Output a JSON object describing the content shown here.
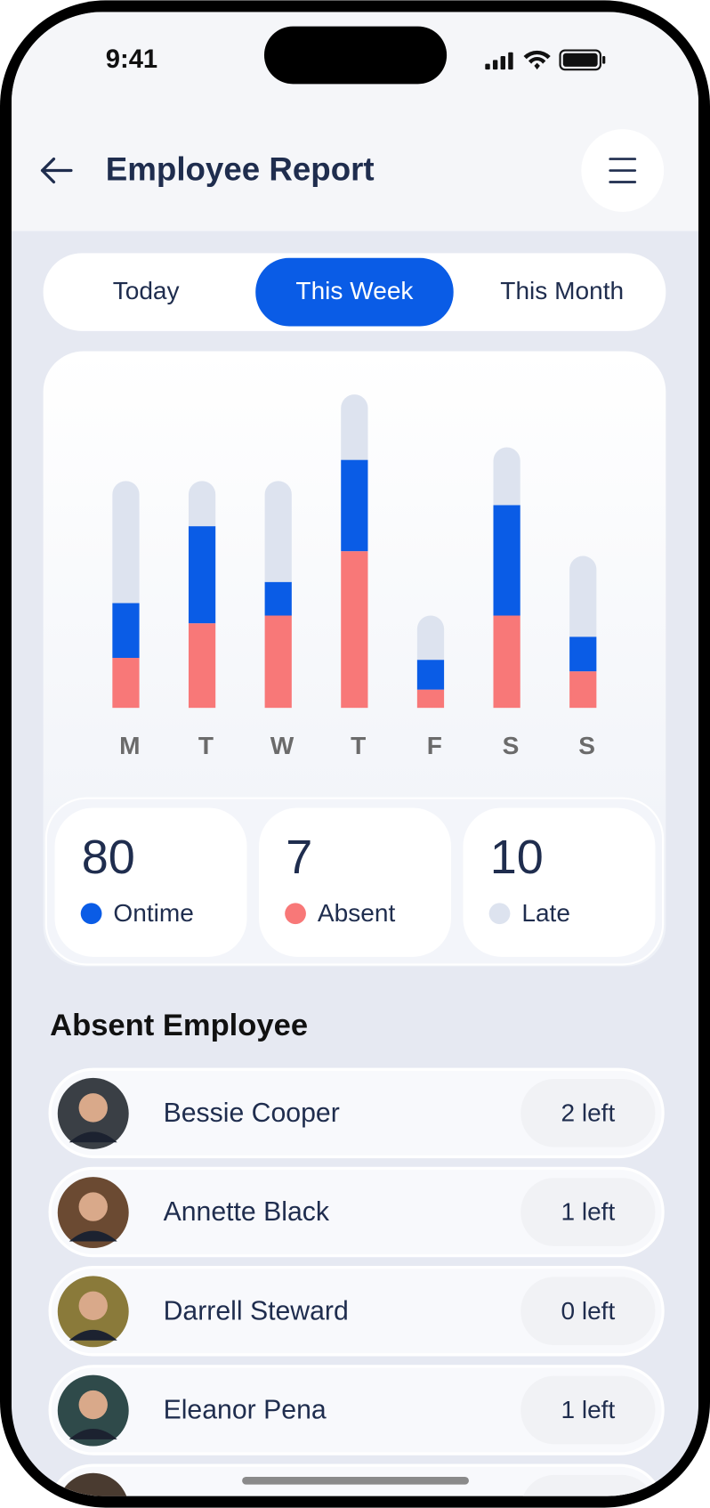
{
  "status_bar": {
    "time": "9:41"
  },
  "header": {
    "title": "Employee Report"
  },
  "tabs": {
    "items": [
      "Today",
      "This Week",
      "This Month"
    ],
    "active": 1
  },
  "chart_data": {
    "type": "bar",
    "stacked": true,
    "categories": [
      "M",
      "T",
      "W",
      "T",
      "F",
      "S",
      "S"
    ],
    "series": [
      {
        "color": "#f87878",
        "values": [
          52,
          88,
          96,
          163,
          19,
          96,
          38
        ]
      },
      {
        "color": "#0a5ce6",
        "values": [
          57,
          101,
          35,
          95,
          31,
          115,
          36
        ]
      },
      {
        "color": "#dde3ef",
        "values": [
          127,
          47,
          105,
          68,
          46,
          60,
          84
        ]
      }
    ],
    "ylim": [
      0,
      330
    ]
  },
  "summary": [
    {
      "value": 80,
      "label": "Ontime",
      "color": "#0a5ce6"
    },
    {
      "value": 7,
      "label": "Absent",
      "color": "#f87878"
    },
    {
      "value": 10,
      "label": "Late",
      "color": "#dde3ef"
    }
  ],
  "absent": {
    "title": "Absent Employee",
    "employees": [
      {
        "name": "Bessie Cooper",
        "left": "2 left"
      },
      {
        "name": "Annette Black",
        "left": "1 left"
      },
      {
        "name": "Darrell Steward",
        "left": "0 left"
      },
      {
        "name": "Eleanor Pena",
        "left": "1 left"
      }
    ]
  }
}
